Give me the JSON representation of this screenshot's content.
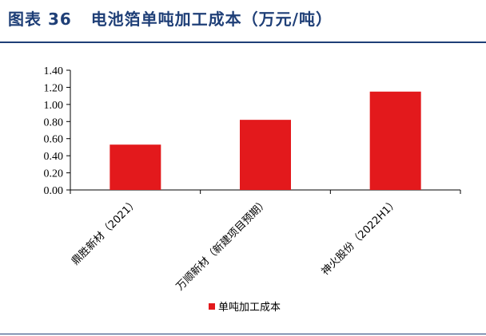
{
  "figure": {
    "label": "图表 36",
    "title": "电池箔单吨加工成本（万元/吨）"
  },
  "colors": {
    "title": "#1f3f77",
    "bar": "#e3191c",
    "axis": "#000000"
  },
  "chart_data": {
    "type": "bar",
    "title": "",
    "xlabel": "",
    "ylabel": "",
    "categories": [
      "鼎胜新材（2021）",
      "万顺新材（新建项目预期）",
      "神火股份（2022H1）"
    ],
    "series": [
      {
        "name": "单吨加工成本",
        "values": [
          0.53,
          0.82,
          1.15
        ]
      }
    ],
    "ylim": [
      0,
      1.4
    ],
    "yticks": [
      "0.00",
      "0.20",
      "0.40",
      "0.60",
      "0.80",
      "1.00",
      "1.20",
      "1.40"
    ],
    "grid": false,
    "legend": "bottom"
  }
}
